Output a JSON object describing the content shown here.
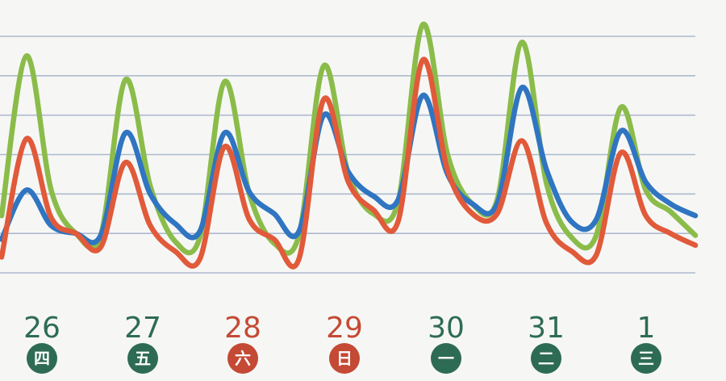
{
  "chart_data": {
    "type": "line",
    "title": "",
    "xlabel": "",
    "ylabel": "",
    "grid": true,
    "legend": "none",
    "x": [
      0,
      0.25,
      0.5,
      0.75,
      1,
      1.25,
      1.5,
      1.75,
      2,
      2.25,
      2.5,
      2.75,
      3,
      3.25,
      3.5,
      3.75,
      4,
      4.25,
      4.5,
      4.75,
      5,
      5.25,
      5.5,
      5.75,
      6,
      6.25,
      6.5,
      6.75,
      7
    ],
    "ylim": [
      0,
      6
    ],
    "days": [
      {
        "day": "26",
        "weekday": "四",
        "color": "#2e6b55"
      },
      {
        "day": "27",
        "weekday": "五",
        "color": "#2e6b55"
      },
      {
        "day": "28",
        "weekday": "六",
        "color": "#c44a35"
      },
      {
        "day": "29",
        "weekday": "日",
        "color": "#c44a35"
      },
      {
        "day": "30",
        "weekday": "一",
        "color": "#2e6b55"
      },
      {
        "day": "31",
        "weekday": "二",
        "color": "#2e6b55"
      },
      {
        "day": "1",
        "weekday": "三",
        "color": "#2e6b55"
      }
    ],
    "series": [
      {
        "color": "#8bbc4a",
        "values": [
          1.45,
          5.5,
          2.1,
          1.0,
          0.95,
          4.9,
          2.2,
          0.8,
          0.9,
          4.85,
          2.0,
          0.75,
          0.95,
          5.25,
          2.5,
          1.5,
          1.8,
          6.3,
          3.0,
          1.75,
          1.85,
          5.85,
          2.25,
          0.9,
          0.95,
          4.2,
          2.1,
          1.55,
          0.95
        ]
      },
      {
        "color": "#2f75c1",
        "values": [
          0.85,
          2.1,
          1.2,
          1.0,
          0.95,
          3.55,
          2.0,
          1.25,
          1.05,
          3.55,
          2.05,
          1.5,
          1.05,
          4.0,
          2.55,
          1.95,
          1.85,
          4.5,
          2.5,
          1.75,
          1.75,
          4.7,
          2.6,
          1.3,
          1.35,
          3.6,
          2.3,
          1.75,
          1.45
        ]
      },
      {
        "color": "#e15a3a",
        "values": [
          0.4,
          3.4,
          1.4,
          1.0,
          0.65,
          2.8,
          1.2,
          0.55,
          0.35,
          3.2,
          1.35,
          0.85,
          0.35,
          4.4,
          2.3,
          1.6,
          1.3,
          5.4,
          2.6,
          1.5,
          1.5,
          3.35,
          1.25,
          0.55,
          0.45,
          3.05,
          1.45,
          1.0,
          0.7
        ]
      }
    ]
  }
}
